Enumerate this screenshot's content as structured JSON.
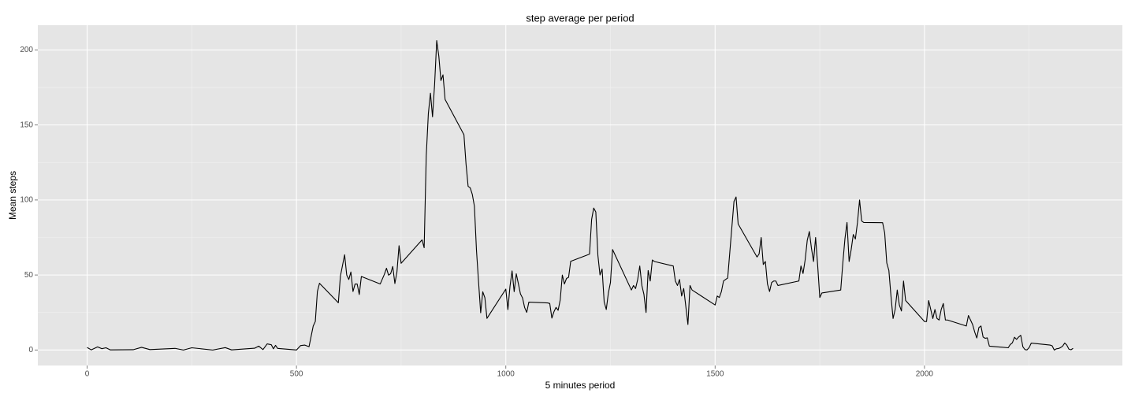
{
  "chart_data": {
    "type": "line",
    "title": "step average per period",
    "x_label": "5 minutes period",
    "y_label": "Mean steps",
    "xlim": [
      -117.75,
      2472.75
    ],
    "ylim": [
      -10.31,
      216.48
    ],
    "xticks": [
      0,
      500,
      1000,
      1500,
      2000
    ],
    "yticks": [
      0,
      50,
      100,
      150,
      200
    ],
    "x_minor_ticks": [
      250,
      750,
      1250,
      1750,
      2250
    ],
    "y_minor_ticks": [
      25,
      75,
      125,
      175
    ],
    "grid": true,
    "background": "#e5e5e5",
    "series": [
      {
        "name": "Mean steps",
        "color": "#000000",
        "x": [
          0,
          10,
          25,
          35,
          45,
          55,
          110,
          130,
          150,
          210,
          230,
          250,
          300,
          330,
          345,
          400,
          410,
          420,
          430,
          440,
          445,
          450,
          455,
          500,
          510,
          520,
          530,
          540,
          545,
          550,
          555,
          600,
          605,
          615,
          620,
          625,
          630,
          635,
          640,
          645,
          650,
          655,
          700,
          710,
          715,
          720,
          725,
          730,
          735,
          740,
          745,
          750,
          800,
          805,
          810,
          815,
          820,
          825,
          830,
          835,
          840,
          845,
          850,
          855,
          900,
          905,
          910,
          915,
          920,
          925,
          930,
          935,
          940,
          945,
          950,
          955,
          1000,
          1005,
          1010,
          1015,
          1020,
          1025,
          1030,
          1035,
          1040,
          1045,
          1050,
          1055,
          1100,
          1105,
          1110,
          1115,
          1120,
          1125,
          1130,
          1135,
          1140,
          1145,
          1150,
          1155,
          1200,
          1205,
          1210,
          1215,
          1220,
          1225,
          1230,
          1235,
          1240,
          1245,
          1250,
          1255,
          1300,
          1305,
          1310,
          1315,
          1320,
          1325,
          1330,
          1335,
          1340,
          1345,
          1350,
          1355,
          1400,
          1405,
          1410,
          1415,
          1420,
          1425,
          1430,
          1435,
          1440,
          1445,
          1500,
          1505,
          1510,
          1515,
          1520,
          1525,
          1530,
          1535,
          1540,
          1545,
          1550,
          1555,
          1600,
          1605,
          1610,
          1615,
          1620,
          1625,
          1630,
          1635,
          1640,
          1645,
          1650,
          1700,
          1705,
          1710,
          1715,
          1720,
          1725,
          1730,
          1735,
          1740,
          1745,
          1750,
          1755,
          1800,
          1805,
          1810,
          1815,
          1820,
          1825,
          1830,
          1835,
          1840,
          1845,
          1850,
          1855,
          1900,
          1905,
          1910,
          1915,
          1920,
          1925,
          1930,
          1935,
          1940,
          1945,
          1950,
          1955,
          2000,
          2005,
          2010,
          2015,
          2020,
          2025,
          2030,
          2035,
          2040,
          2045,
          2050,
          2055,
          2100,
          2105,
          2110,
          2115,
          2120,
          2125,
          2130,
          2135,
          2140,
          2145,
          2150,
          2155,
          2200,
          2205,
          2210,
          2215,
          2220,
          2225,
          2230,
          2235,
          2240,
          2245,
          2250,
          2255,
          2300,
          2305,
          2310,
          2315,
          2320,
          2325,
          2330,
          2335,
          2340,
          2345,
          2350,
          2355
        ],
        "values": [
          1.7,
          0.1,
          2.1,
          0.9,
          1.5,
          0.1,
          0.2,
          1.8,
          0.3,
          1.1,
          0,
          1.5,
          0,
          1.6,
          0.1,
          1.2,
          2.6,
          0.3,
          4.1,
          3.5,
          0.8,
          3.1,
          1.1,
          0,
          3,
          3.3,
          2.2,
          16,
          19,
          39,
          44.5,
          31.5,
          49.3,
          63.5,
          50,
          47,
          52,
          39,
          44,
          44,
          37,
          49,
          44,
          50.5,
          54.5,
          49.9,
          50.9,
          55.7,
          44.3,
          52,
          69.5,
          57.8,
          73.4,
          68.2,
          129.4,
          157.5,
          171.2,
          155.4,
          177.3,
          206.2,
          195.9,
          179.6,
          183.4,
          167,
          143.5,
          124,
          109.1,
          108.1,
          103.7,
          95.9,
          66.2,
          45.2,
          24.8,
          38.8,
          34.9,
          21.1,
          40.6,
          26.9,
          42.4,
          52.7,
          38.9,
          50.8,
          44.3,
          37.4,
          34.7,
          28.3,
          25.1,
          31.9,
          31.4,
          31,
          21.3,
          25.5,
          28.4,
          26.5,
          33.4,
          50,
          44,
          47.7,
          48.5,
          59.1,
          63.9,
          87,
          94.6,
          92,
          63,
          50,
          54,
          32,
          27,
          38,
          45,
          67,
          40,
          43,
          41,
          47,
          56,
          43,
          37,
          25,
          53,
          46,
          60,
          59,
          56,
          46,
          43,
          47,
          36,
          41,
          29,
          17,
          43,
          40,
          30,
          36,
          35,
          39,
          46,
          47,
          48,
          65,
          82,
          99,
          102,
          84,
          62,
          64,
          75,
          57,
          59,
          44,
          39,
          45,
          46,
          46,
          43,
          46,
          56,
          51,
          60,
          73,
          79,
          68,
          59,
          75,
          56,
          35,
          38,
          40,
          58,
          74,
          85,
          59,
          67,
          77,
          74,
          85,
          100,
          86,
          85,
          84.9,
          78,
          58,
          53,
          36,
          21,
          27,
          40,
          30,
          26,
          46,
          33,
          19,
          19,
          33,
          27,
          21,
          27,
          21,
          20,
          27,
          31,
          20,
          20,
          16,
          23,
          20,
          17,
          12,
          8,
          15,
          16,
          8.7,
          7.8,
          8.1,
          2.6,
          1.5,
          3.7,
          4.8,
          8.5,
          7.1,
          8.7,
          9.8,
          2.2,
          0.3,
          0.1,
          1.6,
          4.6,
          3.3,
          2.8,
          0,
          0.8,
          1,
          1.6,
          2.6,
          4.7,
          3.3,
          0.6,
          0.2,
          1.1
        ]
      }
    ]
  }
}
